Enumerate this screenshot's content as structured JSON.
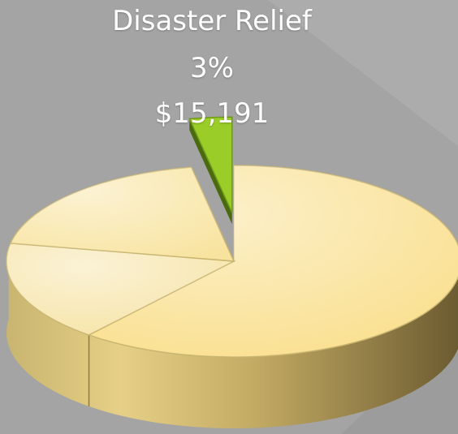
{
  "chart_data": {
    "type": "pie",
    "three_d": true,
    "slices": [
      {
        "name": "Disaster Relief",
        "percent": 3,
        "value": "$15,191",
        "color": "#9acd28",
        "exploded": true,
        "labelled": true
      },
      {
        "name": "",
        "percent": 61,
        "value": "",
        "color": "#f9de8a",
        "exploded": false,
        "labelled": false
      },
      {
        "name": "",
        "percent": 17,
        "value": "",
        "color": "#f6e3a4",
        "exploded": false,
        "labelled": false
      },
      {
        "name": "",
        "percent": 19,
        "value": "",
        "color": "#f8e39e",
        "exploded": false,
        "labelled": false
      }
    ]
  }
}
